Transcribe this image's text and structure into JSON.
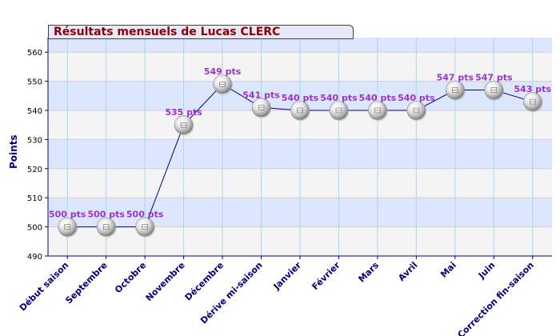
{
  "chart_data": {
    "type": "line",
    "title": "Résultats mensuels de  Lucas CLERC",
    "ylabel": "Points",
    "ylim": [
      490,
      565
    ],
    "yticks": [
      490,
      500,
      510,
      520,
      530,
      540,
      550,
      560
    ],
    "categories": [
      "Début saison",
      "Septembre",
      "Octobre",
      "Novembre",
      "Décembre",
      "Dérive mi-saison",
      "Janvier",
      "Février",
      "Mars",
      "Avril",
      "Mai",
      "Juin",
      "Correction fin-saison"
    ],
    "values": [
      500,
      500,
      500,
      535,
      549,
      541,
      540,
      540,
      540,
      540,
      547,
      547,
      543
    ],
    "data_labels": [
      "500 pts",
      "500 pts",
      "500 pts",
      "535 pts",
      "549 pts",
      "541 pts",
      "540 pts",
      "540 pts",
      "540 pts",
      "540 pts",
      "547 pts",
      "547 pts",
      "543 pts"
    ],
    "grid": true,
    "colors": {
      "line": "#000080",
      "label": "#9933cc",
      "axis": "#000080",
      "band_light": "#f4f4f4",
      "band_blue": "#dce6fc",
      "vgrid": "#a8d8e8",
      "title_text": "#8b0000",
      "title_bg": "#e8e8fa"
    }
  }
}
